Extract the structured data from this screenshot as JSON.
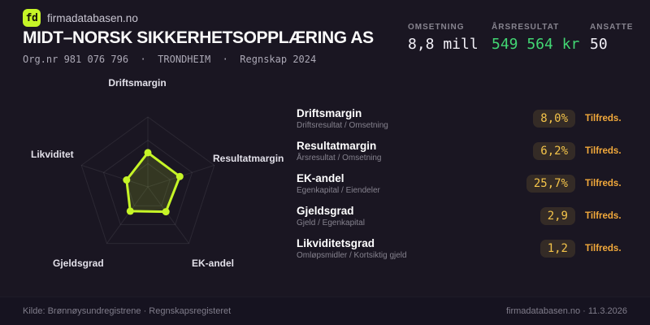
{
  "brand": {
    "logo_text": "fd",
    "name": "firmadatabasen.no"
  },
  "header": {
    "title": "MIDT–NORSK SIKKERHETSOPPLÆRING AS",
    "subtitle": "Org.nr 981 076 796  ·  TRONDHEIM  ·  Regnskap 2024"
  },
  "stats": [
    {
      "label": "OMSETNING",
      "value": "8,8 mill",
      "color": "#f2f0f7"
    },
    {
      "label": "ÅRSRESULTAT",
      "value": "549 564 kr",
      "color": "#42d673"
    },
    {
      "label": "ANSATTE",
      "value": "50",
      "color": "#f2f0f7"
    }
  ],
  "chart_data": {
    "type": "radar",
    "axes": [
      "Driftsmargin",
      "Resultatmargin",
      "EK-andel",
      "Gjeldsgrad",
      "Likviditet"
    ],
    "values_normalized": [
      0.49,
      0.48,
      0.44,
      0.43,
      0.32
    ],
    "axis_display_values": [
      "8,0%",
      "6,2%",
      "25,7%",
      "2,9",
      "1,2"
    ],
    "rings": 3,
    "range": [
      0,
      1
    ],
    "legend": "none",
    "stroke_color": "#c6f527",
    "fill_color": "rgba(198,245,39,0.15)",
    "grid_color": "rgba(255,255,255,0.08)"
  },
  "metrics": [
    {
      "name": "Driftsmargin",
      "formula": "Driftsresultat / Omsetning",
      "value": "8,0%",
      "status": "Tilfreds."
    },
    {
      "name": "Resultatmargin",
      "formula": "Årsresultat / Omsetning",
      "value": "6,2%",
      "status": "Tilfreds."
    },
    {
      "name": "EK-andel",
      "formula": "Egenkapital / Eiendeler",
      "value": "25,7%",
      "status": "Tilfreds."
    },
    {
      "name": "Gjeldsgrad",
      "formula": "Gjeld / Egenkapital",
      "value": "2,9",
      "status": "Tilfreds."
    },
    {
      "name": "Likviditetsgrad",
      "formula": "Omløpsmidler / Kortsiktig gjeld",
      "value": "1,2",
      "status": "Tilfreds."
    }
  ],
  "footer": {
    "left": "Kilde: Brønnøysundregistrene · Regnskapsregisteret",
    "right": "firmadatabasen.no · 11.3.2026"
  },
  "colors": {
    "accent": "#c6f527",
    "positive": "#42d673",
    "warning": "#f4c44a",
    "status": "#f2a93b",
    "background": "#1a1622"
  }
}
